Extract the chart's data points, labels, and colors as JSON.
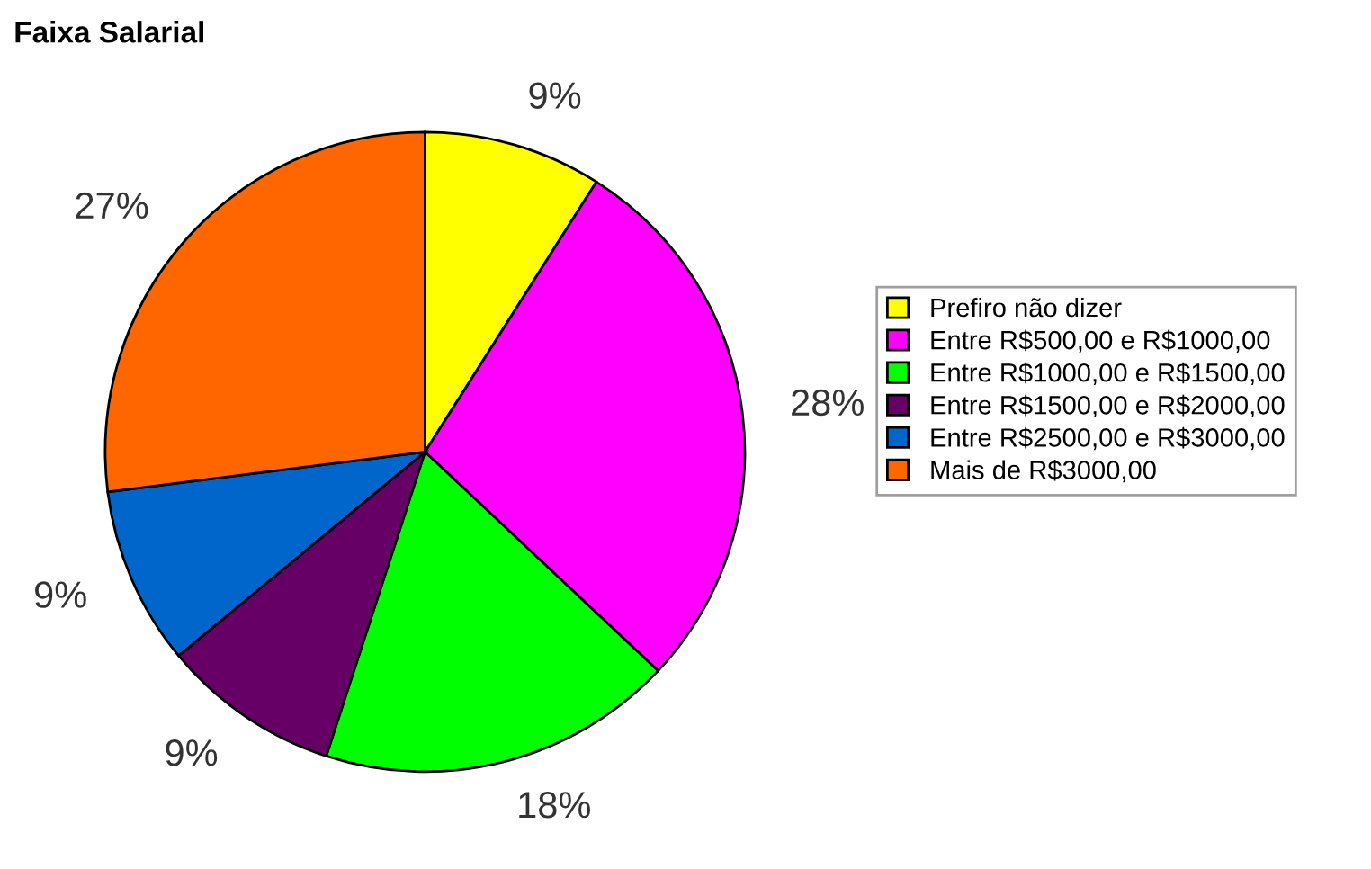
{
  "chart_data": {
    "type": "pie",
    "title": "Faixa Salarial",
    "categories": [
      "Prefiro não dizer",
      "Entre R$500,00 e R$1000,00",
      "Entre R$1000,00 e R$1500,00",
      "Entre R$1500,00 e R$2000,00",
      "Entre R$2500,00 e R$3000,00",
      "Mais de R$3000,00"
    ],
    "values": [
      9,
      28,
      18,
      9,
      9,
      27
    ],
    "colors": [
      "#ffff00",
      "#ff00ff",
      "#00ff00",
      "#660066",
      "#0066cc",
      "#ff6600"
    ],
    "value_labels": [
      "9%",
      "28%",
      "18%",
      "9%",
      "9%",
      "27%"
    ],
    "legend": "right"
  }
}
